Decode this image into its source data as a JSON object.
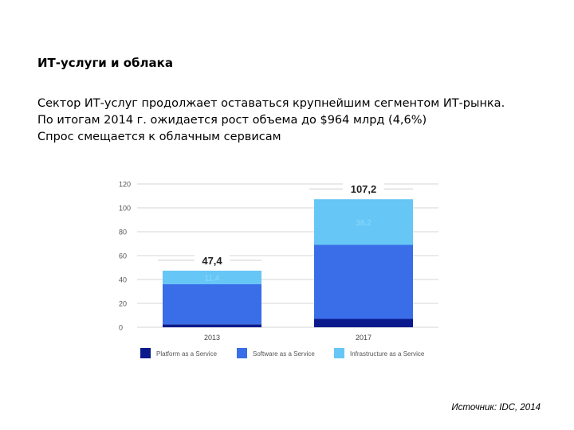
{
  "slide": {
    "title": "ИТ-услуги и облака",
    "body_lines": [
      "Сектор ИТ-услуг продолжает оставаться крупнейшим сегментом ИТ-рынка.",
      "По итогам 2014 г. ожидается рост объема до $964 млрд (4,6%)",
      "Спрос смещается к облачным сервисам"
    ],
    "source": "Источник: IDC, 2014"
  },
  "chart_data": {
    "type": "bar",
    "stacked": true,
    "categories": [
      "2013",
      "2017"
    ],
    "series": [
      {
        "name": "Platform as a Service",
        "color": "#0a1a8c",
        "values": [
          2.5,
          7.0
        ]
      },
      {
        "name": "Software as a Service",
        "color": "#3a6ee8",
        "values": [
          33.5,
          62.0
        ]
      },
      {
        "name": "Infrastructure as a Service",
        "color": "#66c6f5",
        "values": [
          11.4,
          38.2
        ]
      }
    ],
    "totals": [
      "47,4",
      "107,2"
    ],
    "segment_labels": [
      [
        "",
        "",
        "11,4"
      ],
      [
        "",
        "",
        "38,2"
      ]
    ],
    "y_ticks": [
      "0",
      "20",
      "40",
      "60",
      "80",
      "100",
      "120"
    ],
    "y_tick_values": [
      0,
      20,
      40,
      60,
      80,
      100,
      120
    ],
    "ylim": [
      0,
      120
    ],
    "grid": true,
    "legend_position": "bottom"
  }
}
